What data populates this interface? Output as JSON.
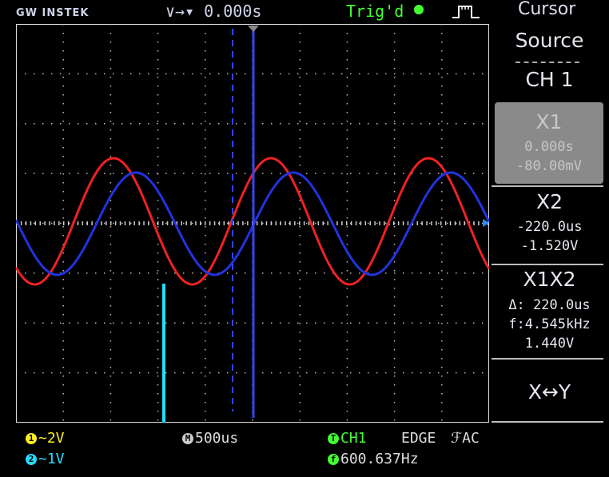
{
  "topbar": {
    "brand": "GW INSTEK",
    "horizontal_position": "0.000s",
    "horizontal_prefix": "∨→▾",
    "trigger_status": "Trig'd",
    "trigger_shape_icon": "rising-edge-pulse-icon",
    "menu_title": "Cursor"
  },
  "menu": {
    "source_label": "Source",
    "source_value": "CH 1",
    "x1_label": "X1",
    "x1_time": "0.000s",
    "x1_value": "-80.00mV",
    "x2_label": "X2",
    "x2_time": "-220.0us",
    "x2_value": "-1.520V",
    "x1x2_label": "X1X2",
    "x1x2_delta": "Δ: 220.0us",
    "x1x2_freq": "f:4.545kHz",
    "x1x2_volt": "1.440V",
    "swap_label": "X↔Y"
  },
  "bottom": {
    "ch1_badge": "1",
    "ch1_scale": "~2V",
    "ch2_badge": "2",
    "ch2_scale": "~1V",
    "timebase_badge": "M",
    "timebase": "500us",
    "trigger_badge": "T",
    "trigger_source": "CH1",
    "trigger_type": "EDGE",
    "trigger_coupling": "ℱAC",
    "freq_badge": "f",
    "frequency": "600.637Hz"
  },
  "colors": {
    "ch1": "#ee2222",
    "ch2": "#2233dd",
    "cursor": "#3344ee",
    "trigger": "#44ff33",
    "ch1_label": "#ffee22",
    "ch2_label": "#22ddff"
  }
}
